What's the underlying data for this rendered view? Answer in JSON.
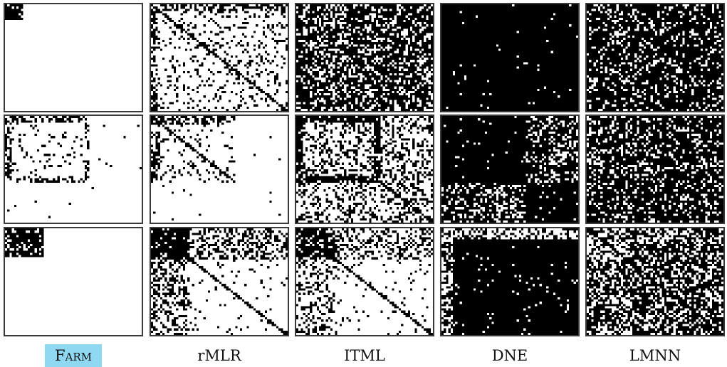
{
  "columns": [
    {
      "id": "farm",
      "label": "Farm",
      "highlighted": true
    },
    {
      "id": "rmlr",
      "label": "rMLR",
      "highlighted": false
    },
    {
      "id": "itml",
      "label": "ITML",
      "highlighted": false
    },
    {
      "id": "dne",
      "label": "DNE",
      "highlighted": false
    },
    {
      "id": "lmnn",
      "label": "LMNN",
      "highlighted": false
    }
  ],
  "rows": 3,
  "colors": {
    "highlight": "#8fd8f2",
    "border": "#3a3a3a",
    "ink": "#000000",
    "paper": "#ffffff"
  }
}
